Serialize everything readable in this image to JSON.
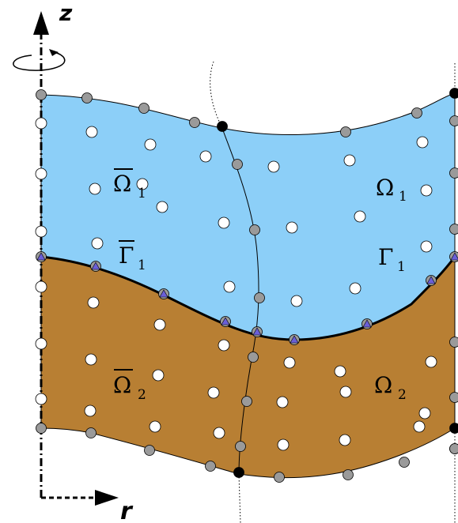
{
  "axes": {
    "z_label": "z",
    "r_label": "r"
  },
  "regions": {
    "left_upper": {
      "base": "Ω",
      "sub": "1",
      "overbar": true
    },
    "right_upper": {
      "base": "Ω",
      "sub": "1",
      "overbar": false
    },
    "left_interface": {
      "base": "Γ",
      "sub": "1",
      "overbar": true
    },
    "right_interface": {
      "base": "Γ",
      "sub": "1",
      "overbar": false
    },
    "left_lower": {
      "base": "Ω",
      "sub": "2",
      "overbar": true
    },
    "right_lower": {
      "base": "Ω",
      "sub": "2",
      "overbar": false
    }
  },
  "colors": {
    "fluid_upper": "#8ccff8",
    "fluid_lower": "#b87f33",
    "node_gray": "#9a9a9a",
    "node_black": "#000000",
    "node_white": "#ffffff",
    "interface_node": "#6a5fd8"
  },
  "icons": {
    "rotation": "rotation-arrow-icon"
  }
}
